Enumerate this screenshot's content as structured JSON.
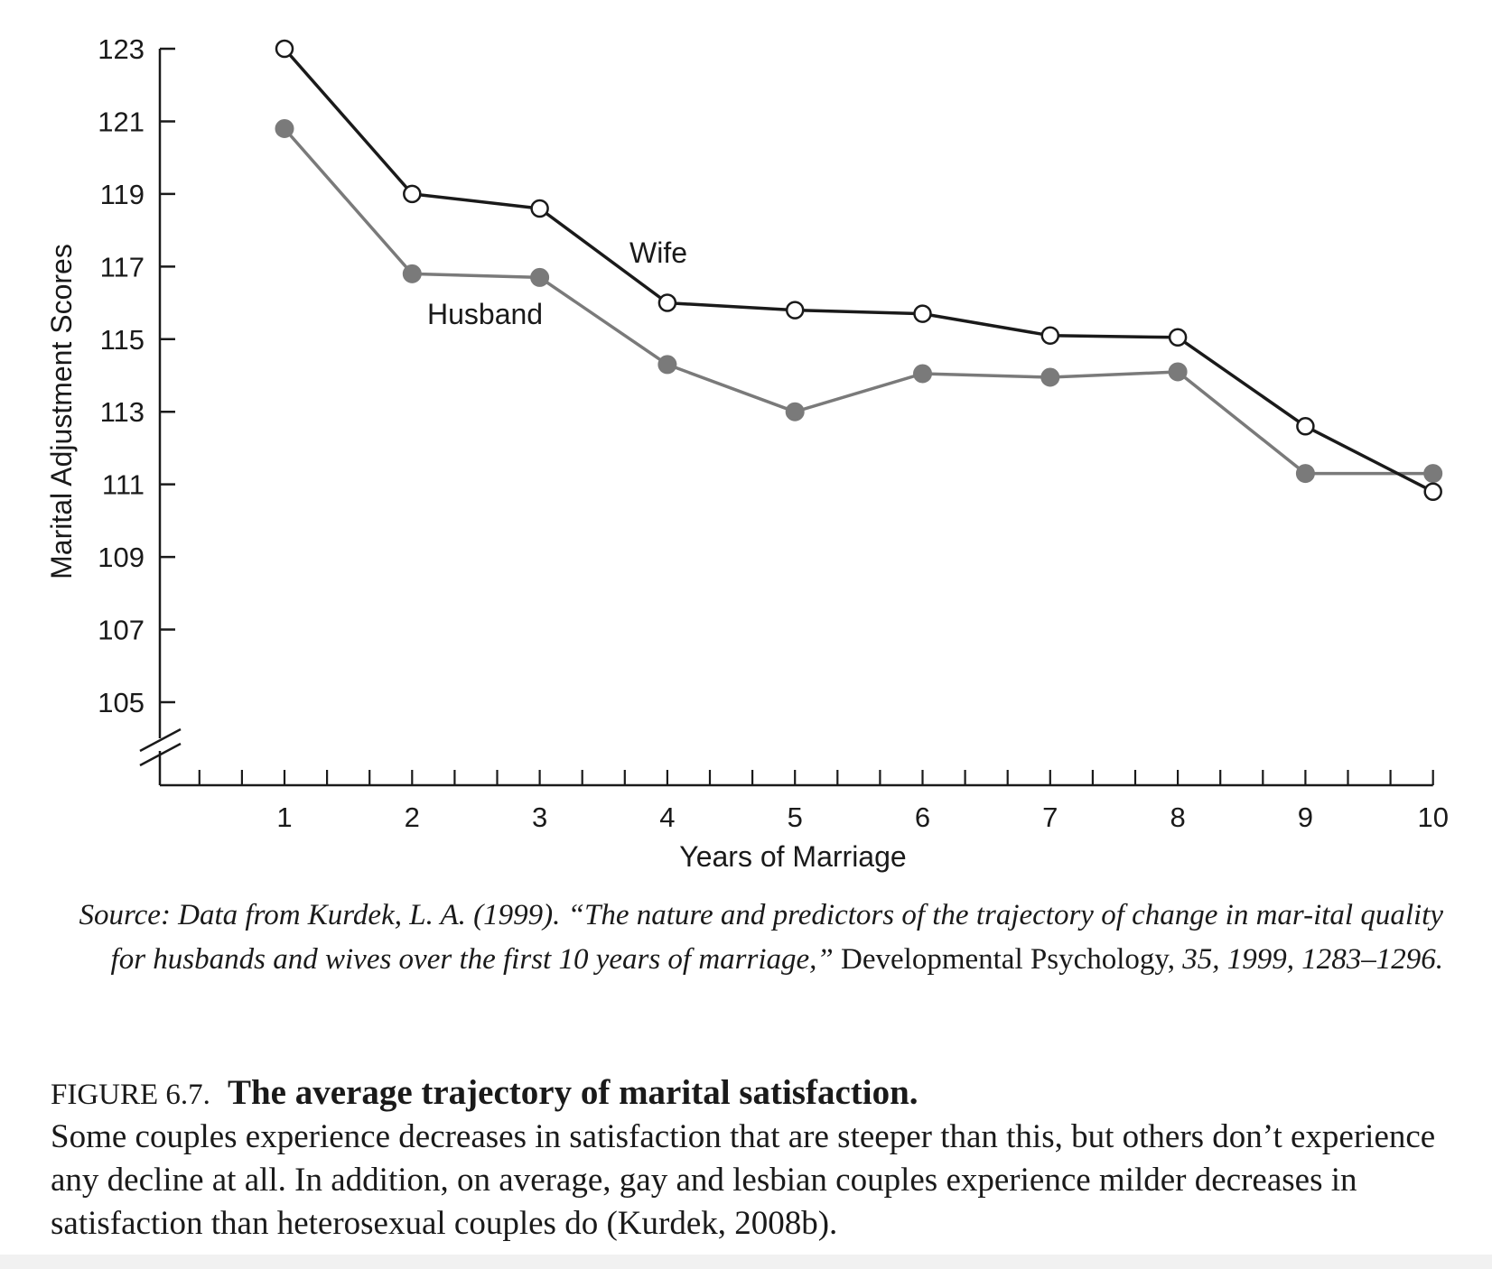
{
  "chart_data": {
    "type": "line",
    "xlabel": "Years of Marriage",
    "ylabel": "Marital Adjustment Scores",
    "x": [
      1,
      2,
      3,
      4,
      5,
      6,
      7,
      8,
      9,
      10
    ],
    "xticks_labeled": [
      "1",
      "2",
      "3",
      "4",
      "5",
      "6",
      "7",
      "8",
      "9",
      "10"
    ],
    "yticks": [
      "105",
      "107",
      "109",
      "111",
      "113",
      "115",
      "117",
      "119",
      "121",
      "123"
    ],
    "ylim": [
      105,
      123
    ],
    "axis_break": true,
    "series": [
      {
        "name": "Wife",
        "marker": "open-circle",
        "color": "#1a1a1a",
        "values": [
          123.0,
          119.0,
          118.6,
          116.0,
          115.8,
          115.7,
          115.1,
          115.05,
          112.6,
          110.8
        ]
      },
      {
        "name": "Husband",
        "marker": "filled-circle",
        "color": "#7a7a7a",
        "values": [
          120.8,
          116.8,
          116.7,
          114.3,
          113.0,
          114.05,
          113.95,
          114.1,
          111.3,
          111.3
        ]
      }
    ]
  },
  "source": {
    "lead": "Source: Data from Kurdek, L. A. (1999). “The nature and predictors of the trajectory of change in mar-ital quality for husbands and wives over the first 10 years of marriage,”",
    "journal": "Developmental Psychology,",
    "tail": "35, 1999, 1283–1296."
  },
  "figure": {
    "label": "FIGURE 6.7.",
    "title": "The average trajectory of marital satisfaction.",
    "body": "Some couples experience decreases in satisfaction that are steeper than this, but others don’t experience any decline at all. In addition, on average, gay and lesbian couples experience milder decreases in satisfaction than heterosexual couples do (Kurdek, 2008b)."
  }
}
